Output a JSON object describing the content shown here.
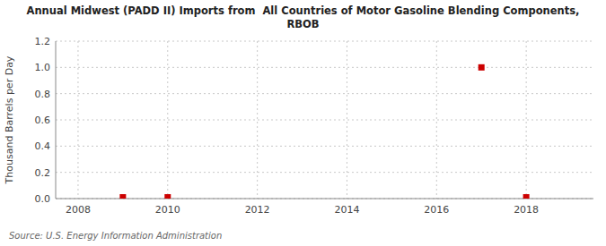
{
  "chart_data": {
    "type": "scatter",
    "title": "Annual Midwest (PADD II) Imports from  All Countries of Motor Gasoline Blending Components,\nRBOB",
    "ylabel": "Thousand Barrels per Day",
    "source": "Source: U.S. Energy Information Administration",
    "x": [
      2009,
      2010,
      2017,
      2018
    ],
    "values": [
      0.01,
      0.01,
      1.0,
      0.01
    ],
    "color": "#cc0000",
    "marker": "square",
    "xlim": [
      2007.5,
      2019.5
    ],
    "ylim": [
      0.0,
      1.2
    ],
    "xticks": [
      2008,
      2010,
      2012,
      2014,
      2016,
      2018
    ],
    "yticks": [
      {
        "value": 0.0,
        "label": "0.0"
      },
      0.2,
      0.4,
      0.6,
      0.8,
      {
        "value": 1.0,
        "label": "1.0"
      },
      1.2
    ],
    "grid": true
  }
}
